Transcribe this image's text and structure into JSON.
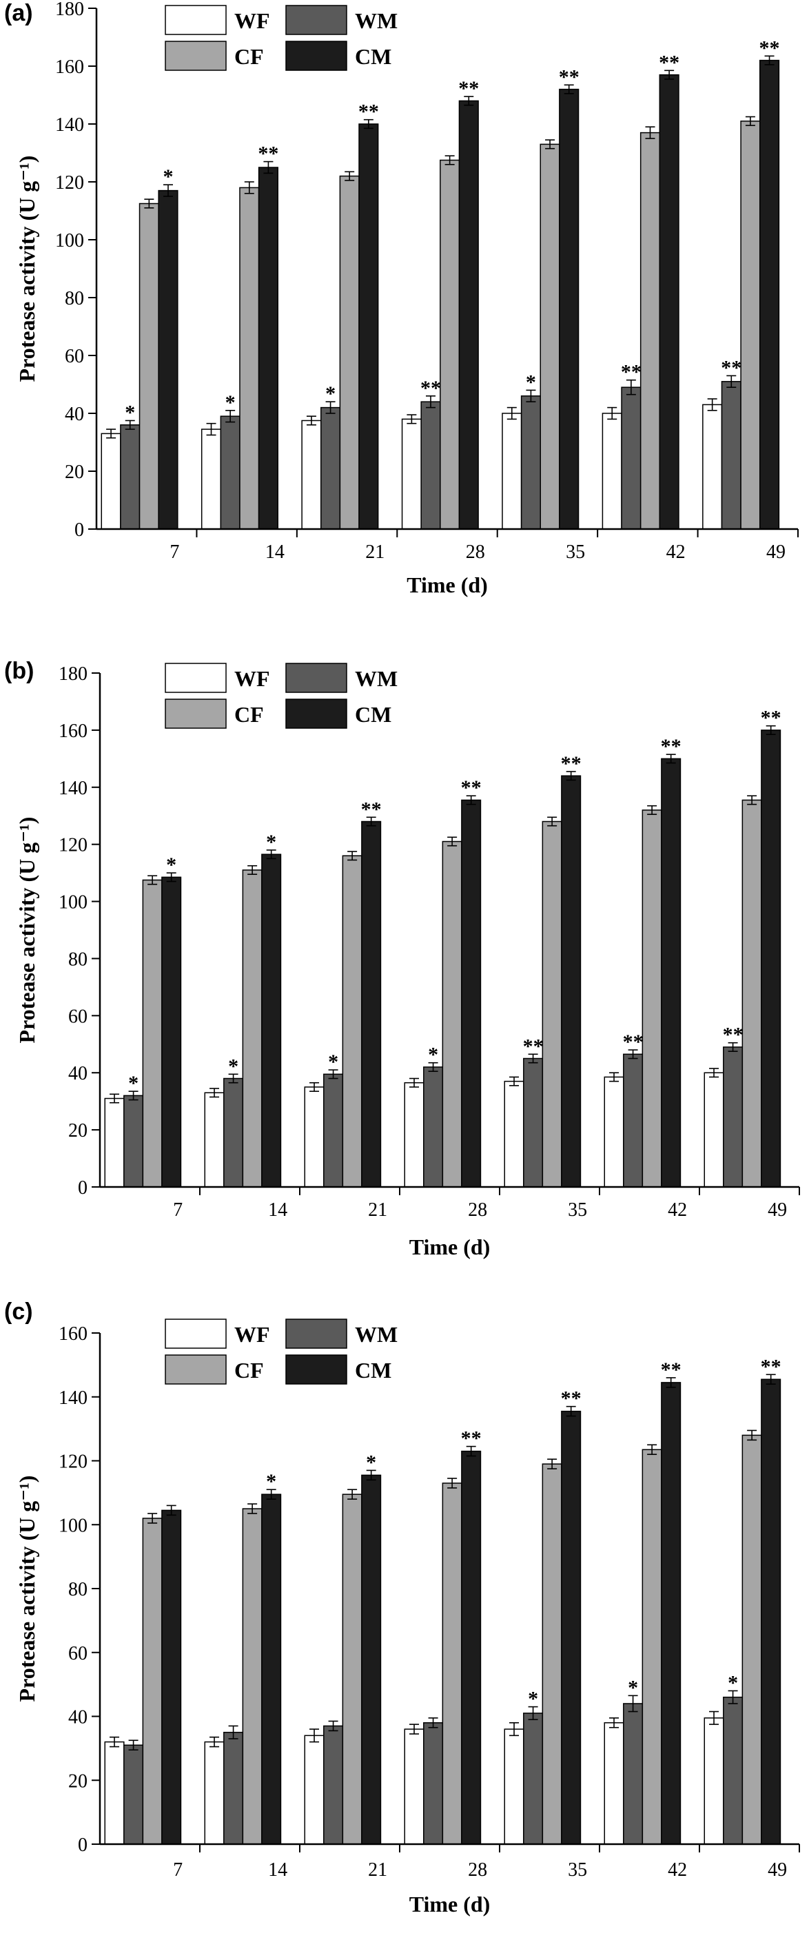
{
  "legend": [
    {
      "name": "WF",
      "color": "#ffffff"
    },
    {
      "name": "WM",
      "color": "#5a5a5a"
    },
    {
      "name": "CF",
      "color": "#a6a6a6"
    },
    {
      "name": "CM",
      "color": "#1c1c1c"
    }
  ],
  "chart_data": [
    {
      "type": "bar",
      "panel_label": "(a)",
      "xlabel": "Time (d)",
      "ylabel": "Protease activity (U g⁻¹)",
      "ylim": [
        0,
        180
      ],
      "yticks": [
        0,
        20,
        40,
        60,
        80,
        100,
        120,
        140,
        160,
        180
      ],
      "categories": [
        "7",
        "14",
        "21",
        "28",
        "35",
        "42",
        "49"
      ],
      "series": [
        {
          "name": "WF",
          "values": [
            33,
            34.5,
            37.5,
            38,
            40,
            40,
            43
          ],
          "errors": [
            1.5,
            2,
            1.5,
            1.5,
            2,
            2,
            2
          ],
          "marks": [
            "",
            "",
            "",
            "",
            "",
            "",
            ""
          ]
        },
        {
          "name": "WM",
          "values": [
            36,
            39,
            42,
            44,
            46,
            49,
            51
          ],
          "errors": [
            1.5,
            2,
            2,
            2,
            2,
            2.5,
            2
          ],
          "marks": [
            "*",
            "*",
            "*",
            "**",
            "*",
            "**",
            "**"
          ]
        },
        {
          "name": "CF",
          "values": [
            112.5,
            118,
            122,
            127.5,
            133,
            137,
            141
          ],
          "errors": [
            1.5,
            2,
            1.5,
            1.5,
            1.5,
            2,
            1.5
          ],
          "marks": [
            "",
            "",
            "",
            "",
            "",
            "",
            ""
          ]
        },
        {
          "name": "CM",
          "values": [
            117,
            125,
            140,
            148,
            152,
            157,
            162
          ],
          "errors": [
            2,
            2,
            1.5,
            1.5,
            1.5,
            1.5,
            1.5
          ],
          "marks": [
            "*",
            "**",
            "**",
            "**",
            "**",
            "**",
            "**"
          ]
        }
      ]
    },
    {
      "type": "bar",
      "panel_label": "(b)",
      "xlabel": "Time (d)",
      "ylabel": "Protease activity (U g⁻¹)",
      "ylim": [
        0,
        180
      ],
      "yticks": [
        0,
        20,
        40,
        60,
        80,
        100,
        120,
        140,
        160,
        180
      ],
      "categories": [
        "7",
        "14",
        "21",
        "28",
        "35",
        "42",
        "49"
      ],
      "series": [
        {
          "name": "WF",
          "values": [
            31,
            33,
            35,
            36.5,
            37,
            38.5,
            40
          ],
          "errors": [
            1.5,
            1.5,
            1.5,
            1.5,
            1.5,
            1.5,
            1.5
          ],
          "marks": [
            "",
            "",
            "",
            "",
            "",
            "",
            ""
          ]
        },
        {
          "name": "WM",
          "values": [
            32,
            38,
            39.5,
            42,
            45,
            46.5,
            49
          ],
          "errors": [
            1.5,
            1.5,
            1.5,
            1.5,
            1.5,
            1.5,
            1.5
          ],
          "marks": [
            "*",
            "*",
            "*",
            "*",
            "**",
            "**",
            "**"
          ]
        },
        {
          "name": "CF",
          "values": [
            107.5,
            111,
            116,
            121,
            128,
            132,
            135.5
          ],
          "errors": [
            1.5,
            1.5,
            1.5,
            1.5,
            1.5,
            1.5,
            1.5
          ],
          "marks": [
            "",
            "",
            "",
            "",
            "",
            "",
            ""
          ]
        },
        {
          "name": "CM",
          "values": [
            108.5,
            116.5,
            128,
            135.5,
            144,
            150,
            160
          ],
          "errors": [
            1.5,
            1.5,
            1.5,
            1.5,
            1.5,
            1.5,
            1.5
          ],
          "marks": [
            "*",
            "*",
            "**",
            "**",
            "**",
            "**",
            "**"
          ]
        }
      ]
    },
    {
      "type": "bar",
      "panel_label": "(c)",
      "xlabel": "Time (d)",
      "ylabel": "Protease activity (U g⁻¹)",
      "ylim": [
        0,
        160
      ],
      "yticks": [
        0,
        20,
        40,
        60,
        80,
        100,
        120,
        140,
        160
      ],
      "categories": [
        "7",
        "14",
        "21",
        "28",
        "35",
        "42",
        "49"
      ],
      "series": [
        {
          "name": "WF",
          "values": [
            32,
            32,
            34,
            36,
            36,
            38,
            39.5
          ],
          "errors": [
            1.5,
            1.5,
            2,
            1.5,
            2,
            1.5,
            2
          ],
          "marks": [
            "",
            "",
            "",
            "",
            "",
            "",
            ""
          ]
        },
        {
          "name": "WM",
          "values": [
            31,
            35,
            37,
            38,
            41,
            44,
            46
          ],
          "errors": [
            1.5,
            2,
            1.5,
            1.5,
            2,
            2.5,
            2
          ],
          "marks": [
            "",
            "",
            "",
            "",
            "*",
            "*",
            "*"
          ]
        },
        {
          "name": "CF",
          "values": [
            102,
            105,
            109.5,
            113,
            119,
            123.5,
            128
          ],
          "errors": [
            1.5,
            1.5,
            1.5,
            1.5,
            1.5,
            1.5,
            1.5
          ],
          "marks": [
            "",
            "",
            "",
            "",
            "",
            "",
            ""
          ]
        },
        {
          "name": "CM",
          "values": [
            104.5,
            109.5,
            115.5,
            123,
            135.5,
            144.5,
            145.5
          ],
          "errors": [
            1.5,
            1.5,
            1.5,
            1.5,
            1.5,
            1.5,
            1.5
          ],
          "marks": [
            "",
            "*",
            "*",
            "**",
            "**",
            "**",
            "**"
          ]
        }
      ]
    }
  ]
}
